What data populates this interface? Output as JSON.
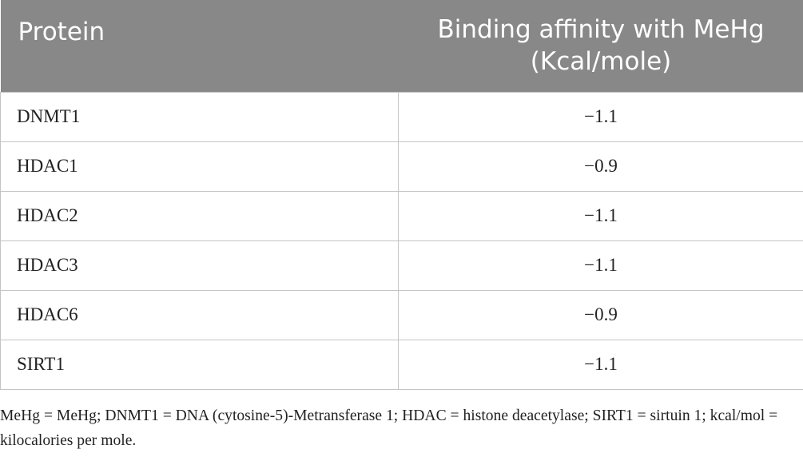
{
  "table": {
    "header": [
      "Protein",
      "Binding affinity with MeHg (Kcal/mole)"
    ],
    "rows": [
      [
        "DNMT1",
        "−1.1"
      ],
      [
        "HDAC1",
        "−0.9"
      ],
      [
        "HDAC2",
        "−1.1"
      ],
      [
        "HDAC3",
        "−1.1"
      ],
      [
        "HDAC6",
        "−0.9"
      ],
      [
        "SIRT1",
        "−1.1"
      ]
    ],
    "footnote": "MeHg = MeHg; DNMT1 = DNA (cytosine-5)-Metransferase 1; HDAC = histone deacetylase; SIRT1 = sirtuin 1; kcal/mol = kilocalories per mole."
  }
}
